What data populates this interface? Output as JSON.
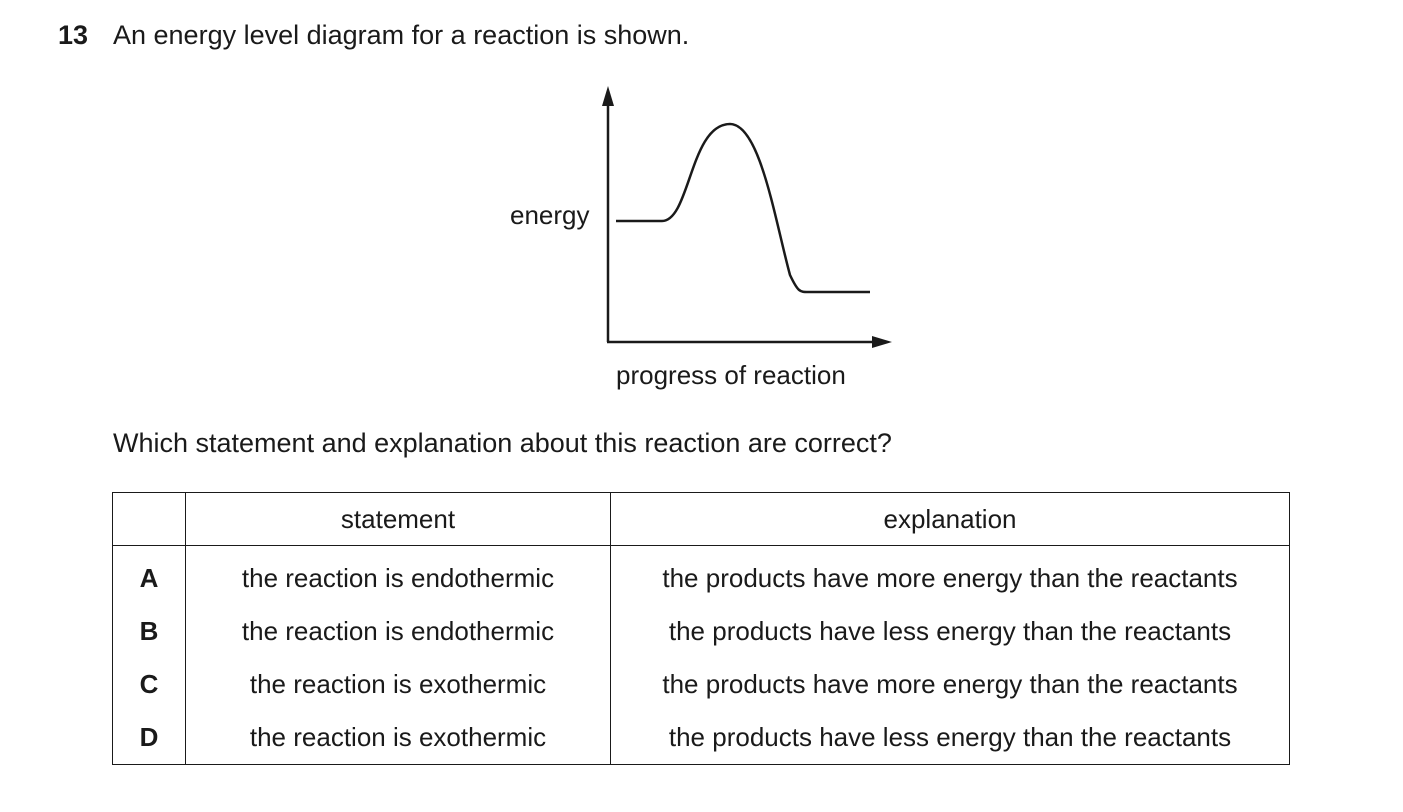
{
  "question": {
    "number": "13",
    "text": "An energy level diagram for a reaction is shown.",
    "prompt": "Which statement and explanation about this reaction are correct?"
  },
  "diagram": {
    "y_label": "energy",
    "x_label": "progress of reaction"
  },
  "table": {
    "headers": [
      "",
      "statement",
      "explanation"
    ],
    "rows": [
      {
        "letter": "A",
        "statement": "the reaction is endothermic",
        "explanation": "the products have more energy than the reactants"
      },
      {
        "letter": "B",
        "statement": "the reaction is endothermic",
        "explanation": "the products have less energy than the reactants"
      },
      {
        "letter": "C",
        "statement": "the reaction is exothermic",
        "explanation": "the products have more energy than the reactants"
      },
      {
        "letter": "D",
        "statement": "the reaction is exothermic",
        "explanation": "the products have less energy than the reactants"
      }
    ]
  }
}
